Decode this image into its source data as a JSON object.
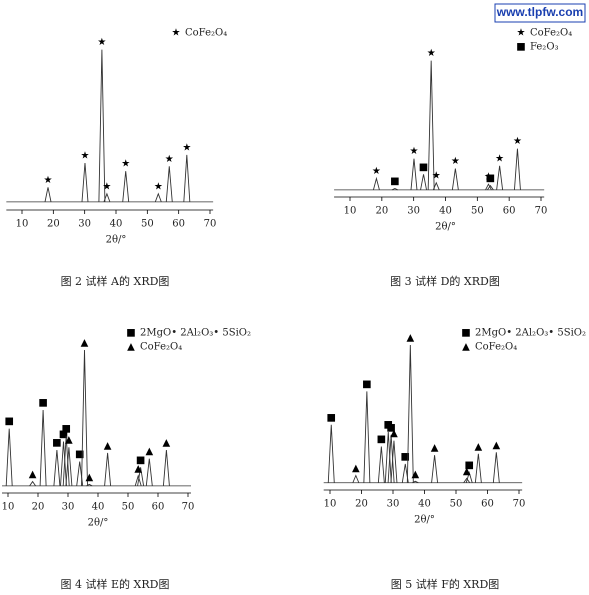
{
  "watermark": "www.tlpfw.com",
  "chart_data": [
    {
      "type": "line",
      "caption": "图 2  试样 A的 XRD图",
      "xlabel": "2θ/°",
      "xlim": [
        5,
        71
      ],
      "xticks": [
        10,
        20,
        30,
        40,
        50,
        60,
        70
      ],
      "ylim": [
        0,
        100
      ],
      "baseline": 5,
      "series": [
        {
          "name": "CoFe₂O₄",
          "marker": "★",
          "x": [
            18.3,
            30.1,
            35.5,
            37.1,
            43.1,
            53.5,
            57.0,
            62.6
          ],
          "values": [
            14,
            29,
            99,
            10,
            24,
            10,
            27,
            34
          ]
        }
      ]
    },
    {
      "type": "line",
      "caption": "图 3  试样 D的 XRD图",
      "xlabel": "2θ/°",
      "xlim": [
        5,
        71
      ],
      "xticks": [
        10,
        20,
        30,
        40,
        50,
        60,
        70
      ],
      "ylim": [
        0,
        100
      ],
      "baseline": 5,
      "series": [
        {
          "name": "CoFe₂O₄",
          "marker": "★",
          "x": [
            18.3,
            30.1,
            35.5,
            37.1,
            43.1,
            53.5,
            57.0,
            62.6
          ],
          "values": [
            13,
            27,
            96,
            10,
            20,
            9,
            22,
            34
          ]
        },
        {
          "name": "Fe₂O₃",
          "marker": "■",
          "x": [
            24.1,
            33.1,
            54.1
          ],
          "values": [
            6,
            16,
            8
          ]
        }
      ]
    },
    {
      "type": "line",
      "caption": "图 4  试样 E的 XRD图",
      "xlabel": "2θ/°",
      "xlim": [
        8,
        71
      ],
      "xticks": [
        10,
        20,
        30,
        40,
        50,
        60,
        70
      ],
      "ylim": [
        0,
        100
      ],
      "baseline": 5,
      "series": [
        {
          "name": "2MgO• 2Al₂O₃• 5SiO₂",
          "marker": "■",
          "x": [
            10.4,
            21.7,
            26.3,
            28.5,
            29.4,
            33.9,
            54.2
          ],
          "values": [
            45,
            58,
            30,
            36,
            40,
            22,
            18
          ]
        },
        {
          "name": "CoFe₂O₄",
          "marker": "▲",
          "x": [
            18.2,
            30.3,
            35.5,
            37.1,
            43.2,
            53.4,
            57.1,
            62.8
          ],
          "values": [
            8,
            32,
            100,
            6,
            28,
            12,
            24,
            30
          ]
        }
      ]
    },
    {
      "type": "line",
      "caption": "图 5  试样 F的 XRD图",
      "xlabel": "2θ/°",
      "xlim": [
        8,
        71
      ],
      "xticks": [
        10,
        20,
        30,
        40,
        50,
        60,
        70
      ],
      "ylim": [
        0,
        100
      ],
      "baseline": 5,
      "series": [
        {
          "name": "2MgO• 2Al₂O₃• 5SiO₂",
          "marker": "■",
          "x": [
            10.4,
            21.7,
            26.3,
            28.5,
            29.4,
            33.9,
            54.2
          ],
          "values": [
            45,
            68,
            30,
            40,
            38,
            18,
            12
          ]
        },
        {
          "name": "CoFe₂O₄",
          "marker": "▲",
          "x": [
            18.2,
            30.3,
            35.5,
            37.1,
            43.2,
            53.4,
            57.1,
            62.8
          ],
          "values": [
            10,
            34,
            100,
            6,
            24,
            8,
            25,
            26
          ]
        }
      ]
    }
  ]
}
